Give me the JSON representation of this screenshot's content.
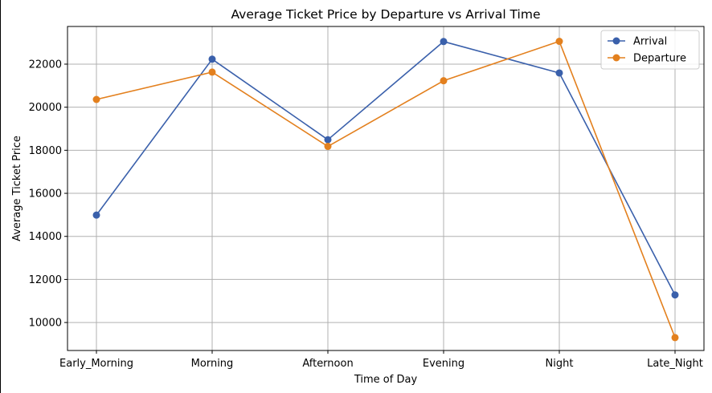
{
  "chart_data": {
    "type": "line",
    "title": "Average Ticket Price by Departure vs Arrival Time",
    "xlabel": "Time of Day",
    "ylabel": "Average Ticket Price",
    "categories": [
      "Early_Morning",
      "Morning",
      "Afternoon",
      "Evening",
      "Night",
      "Late_Night"
    ],
    "ylim": [
      8700,
      23750
    ],
    "yticks": [
      10000,
      12000,
      14000,
      16000,
      18000,
      20000,
      22000
    ],
    "grid": true,
    "legend_position": "top-right",
    "series": [
      {
        "name": "Arrival",
        "color": "#3a60ab",
        "marker": "circle",
        "values": [
          14990,
          22230,
          18490,
          23050,
          21590,
          11280
        ]
      },
      {
        "name": "Departure",
        "color": "#e3801e",
        "marker": "circle",
        "values": [
          20360,
          21630,
          18180,
          21230,
          23060,
          9300
        ]
      }
    ]
  }
}
